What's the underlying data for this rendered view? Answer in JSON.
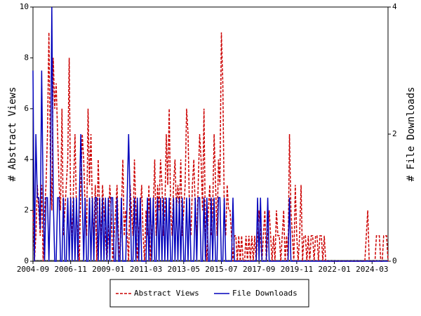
{
  "chart_data": {
    "type": "line",
    "y_label": "# Abstract Views",
    "y2_label": "# File Downloads",
    "categories": [
      "2004-09",
      null,
      null,
      null,
      null,
      null,
      null,
      null,
      null,
      null,
      null,
      null,
      null,
      null,
      null,
      null,
      null,
      null,
      null,
      null,
      null,
      null,
      null,
      null,
      null,
      null,
      "2006-11",
      null,
      null,
      null,
      null,
      null,
      null,
      null,
      null,
      null,
      null,
      null,
      null,
      null,
      null,
      null,
      null,
      null,
      null,
      null,
      null,
      null,
      null,
      null,
      null,
      null,
      "2009-01",
      null,
      null,
      null,
      null,
      null,
      null,
      null,
      null,
      null,
      null,
      null,
      null,
      null,
      null,
      null,
      null,
      null,
      null,
      null,
      null,
      null,
      null,
      null,
      null,
      null,
      "2011-03",
      null,
      null,
      null,
      null,
      null,
      null,
      null,
      null,
      null,
      null,
      null,
      null,
      null,
      null,
      null,
      null,
      null,
      null,
      null,
      null,
      null,
      null,
      null,
      null,
      null,
      "2013-05",
      null,
      null,
      null,
      null,
      null,
      null,
      null,
      null,
      null,
      null,
      null,
      null,
      null,
      null,
      null,
      null,
      null,
      null,
      null,
      null,
      null,
      null,
      null,
      null,
      null,
      "2015-07",
      null,
      null,
      null,
      null,
      null,
      null,
      null,
      null,
      null,
      null,
      null,
      null,
      null,
      null,
      null,
      null,
      null,
      null,
      null,
      null,
      null,
      null,
      null,
      null,
      null,
      "2017-09",
      null,
      null,
      null,
      null,
      null,
      null,
      null,
      null,
      null,
      null,
      null,
      null,
      null,
      null,
      null,
      null,
      null,
      null,
      null,
      null,
      null,
      null,
      null,
      null,
      null,
      "2019-11",
      null,
      null,
      null,
      null,
      null,
      null,
      null,
      null,
      null,
      null,
      null,
      null,
      null,
      null,
      null,
      null,
      null,
      null,
      null,
      null,
      null,
      null,
      null,
      null,
      null,
      "2022-01",
      null,
      null,
      null,
      null,
      null,
      null,
      null,
      null,
      null,
      null,
      null,
      null,
      null,
      null,
      null,
      null,
      null,
      null,
      null,
      null,
      null,
      null,
      null,
      null,
      null,
      "2024-03",
      null,
      null,
      null,
      null,
      null,
      null,
      null,
      null,
      null,
      null,
      null
    ],
    "series": [
      {
        "name": "Abstract Views",
        "color": "#cc0000",
        "dash": true,
        "axis": "y",
        "values": [
          2,
          0,
          1,
          3,
          2,
          1,
          3,
          0,
          2,
          3,
          5,
          9,
          4,
          2,
          8,
          6,
          7,
          5,
          3,
          2,
          6,
          1,
          2,
          3,
          4,
          8,
          2,
          1,
          3,
          5,
          2,
          1,
          0,
          3,
          5,
          4,
          2,
          1,
          6,
          3,
          5,
          2,
          1,
          3,
          0,
          4,
          2,
          1,
          3,
          2,
          1,
          0,
          1,
          3,
          2,
          0,
          1,
          2,
          3,
          1,
          0,
          2,
          4,
          1,
          2,
          1,
          0,
          3,
          2,
          1,
          4,
          2,
          0,
          1,
          2,
          3,
          1,
          0,
          2,
          1,
          3,
          0,
          1,
          2,
          4,
          1,
          3,
          2,
          4,
          3,
          1,
          2,
          5,
          3,
          6,
          2,
          1,
          3,
          4,
          2,
          3,
          2,
          4,
          1,
          2,
          3,
          6,
          5,
          2,
          1,
          3,
          4,
          2,
          1,
          3,
          5,
          4,
          2,
          6,
          1,
          0,
          2,
          3,
          1,
          2,
          5,
          3,
          1,
          4,
          3,
          9,
          7,
          2,
          1,
          3,
          2,
          2,
          1,
          0,
          1,
          1,
          0,
          1,
          0,
          1,
          0,
          0,
          1,
          0,
          1,
          0,
          1,
          0,
          1,
          0,
          1,
          2,
          1,
          0,
          1,
          2,
          0,
          1,
          2,
          1,
          0,
          1,
          0,
          2,
          1,
          1,
          0,
          1,
          2,
          0,
          1,
          0,
          5,
          2,
          1,
          0,
          3,
          1,
          0,
          1,
          3,
          0,
          1,
          1,
          0,
          1,
          0,
          1,
          1,
          0,
          1,
          1,
          0,
          1,
          1,
          0,
          1,
          0,
          0,
          0,
          0,
          0,
          0,
          0,
          0,
          0,
          0,
          0,
          0,
          0,
          0,
          0,
          0,
          0,
          0,
          0,
          0,
          0,
          0,
          0,
          0,
          0,
          0,
          0,
          0,
          1,
          2,
          0,
          0,
          0,
          0,
          0,
          1,
          1,
          1,
          0,
          0,
          1,
          1,
          1,
          0
        ]
      },
      {
        "name": "File Downloads",
        "color": "#0000bb",
        "dash": false,
        "axis": "y2",
        "values": [
          3,
          0,
          2,
          1,
          1,
          0.5,
          3,
          1,
          0,
          1,
          1,
          0,
          1,
          4,
          1,
          0,
          0,
          1,
          1,
          0,
          0,
          1,
          0,
          0,
          1,
          0,
          1,
          0,
          1,
          0,
          1,
          0,
          1,
          2,
          1,
          0,
          1,
          0,
          0,
          1,
          0,
          1,
          0,
          1,
          1,
          0,
          1,
          0,
          1,
          0,
          1,
          0,
          1,
          0,
          1,
          1,
          0,
          0,
          1,
          0,
          0,
          1,
          0,
          0,
          0,
          1,
          2,
          1,
          0,
          0,
          1,
          0,
          1,
          0,
          1,
          0,
          0,
          0,
          0,
          1,
          0,
          1,
          0,
          1,
          0,
          0,
          1,
          0,
          1,
          0,
          1,
          0,
          1,
          0,
          1,
          0,
          0,
          1,
          0,
          1,
          0,
          1,
          0,
          1,
          0,
          0,
          1,
          0,
          1,
          0,
          0,
          0,
          1,
          0,
          1,
          1,
          0,
          0,
          1,
          0,
          1,
          0,
          0,
          1,
          0,
          1,
          0,
          0,
          1,
          1,
          0,
          0,
          1,
          0,
          0,
          0,
          0,
          0,
          1,
          0,
          0,
          0,
          0,
          0,
          0,
          0,
          0,
          0,
          0,
          0,
          0,
          0,
          0,
          0,
          0,
          1,
          0,
          1,
          0,
          0,
          0,
          0,
          1,
          0,
          0,
          0,
          0,
          0,
          0,
          0,
          0,
          0,
          0,
          0,
          0,
          0,
          0,
          1,
          0,
          0,
          0,
          0,
          0,
          0,
          0,
          0,
          0,
          0,
          0,
          0,
          0,
          0,
          0,
          0,
          0,
          0,
          0,
          0,
          0,
          0,
          0,
          0,
          0,
          0,
          0,
          0,
          0,
          0,
          0,
          0,
          0,
          0,
          0,
          0,
          0,
          0,
          0,
          0,
          0,
          0,
          0,
          0,
          0,
          0,
          0,
          0,
          0,
          0,
          0,
          0,
          0,
          0,
          0,
          0,
          0,
          0,
          0,
          0,
          0,
          0,
          0,
          0,
          0,
          0,
          0,
          0
        ]
      }
    ],
    "ylim": [
      0,
      10
    ],
    "yticks": [
      0,
      2,
      4,
      6,
      8,
      10
    ],
    "y2lim": [
      0,
      4
    ],
    "y2ticks": [
      0,
      2,
      4
    ]
  }
}
